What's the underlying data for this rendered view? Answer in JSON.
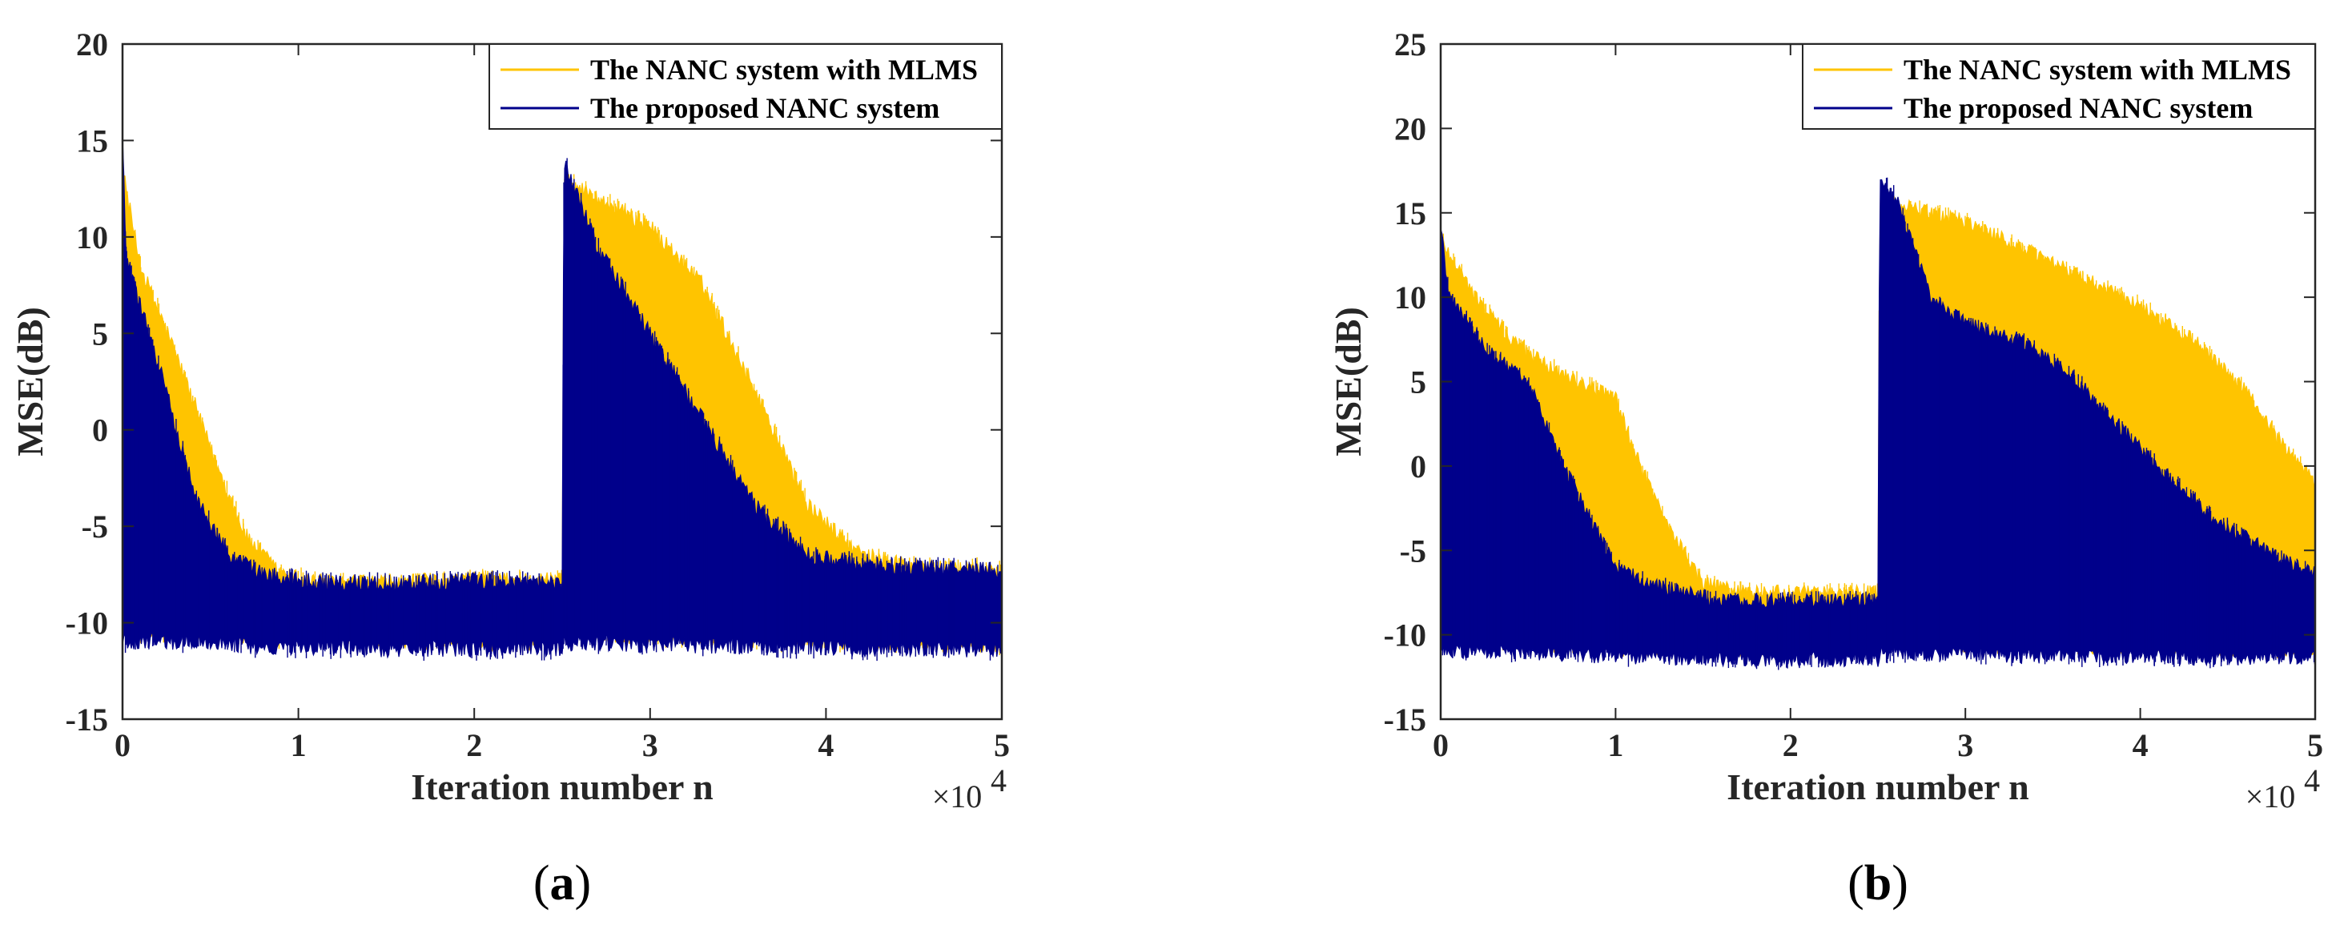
{
  "colors": {
    "mlms": "#FFC400",
    "proposed": "#00008B",
    "axis": "#262626"
  },
  "chart_data": [
    {
      "type": "line",
      "panel_label": "a",
      "xlabel": "Iteration number n",
      "ylabel": "MSE(dB)",
      "x_multiplier_label": "×10",
      "x_multiplier_exp": "4",
      "xlim": [
        0,
        5
      ],
      "ylim": [
        -15,
        20
      ],
      "xticks": [
        0,
        1,
        2,
        3,
        4,
        5
      ],
      "yticks": [
        20,
        15,
        10,
        5,
        0,
        -5,
        -10,
        -15
      ],
      "legend_position": "top-right",
      "series": [
        {
          "name": "The NANC system with MLMS",
          "color_key": "mlms",
          "x": [
            0.0,
            0.1,
            0.3,
            0.5,
            0.7,
            0.9,
            1.2,
            1.6,
            2.0,
            2.45,
            2.5,
            2.51,
            2.7,
            3.0,
            3.3,
            3.6,
            3.9,
            4.2,
            4.6,
            5.0
          ],
          "upper": [
            13.5,
            8.5,
            4.0,
            -1.0,
            -5.5,
            -7.5,
            -8.0,
            -7.9,
            -7.8,
            -7.8,
            -7.8,
            13.0,
            12.0,
            10.5,
            7.5,
            2.0,
            -4.0,
            -6.5,
            -7.2,
            -7.2
          ],
          "lower": [
            -10.0,
            -10.0,
            -10.0,
            -10.0,
            -10.2,
            -10.3,
            -10.3,
            -10.4,
            -10.4,
            -10.4,
            -10.4,
            -9.5,
            -10.0,
            -10.2,
            -10.3,
            -10.4,
            -10.5,
            -10.5,
            -10.6,
            -10.6
          ]
        },
        {
          "name": "The proposed NANC system",
          "color_key": "proposed",
          "x": [
            0.0,
            0.02,
            0.2,
            0.4,
            0.6,
            0.8,
            1.0,
            1.5,
            2.0,
            2.45,
            2.5,
            2.51,
            2.7,
            3.0,
            3.3,
            3.6,
            3.9,
            4.2,
            4.6,
            5.0
          ],
          "upper": [
            15.0,
            9.0,
            3.5,
            -3.0,
            -6.5,
            -7.5,
            -7.8,
            -8.0,
            -7.8,
            -8.0,
            -8.0,
            14.0,
            9.5,
            5.0,
            0.5,
            -4.0,
            -6.5,
            -7.0,
            -7.2,
            -7.2
          ],
          "lower": [
            -10.5,
            -10.5,
            -10.5,
            -10.5,
            -10.6,
            -10.8,
            -10.8,
            -10.9,
            -10.9,
            -10.9,
            -10.9,
            -10.6,
            -10.6,
            -10.7,
            -10.7,
            -10.8,
            -10.8,
            -10.9,
            -10.9,
            -10.9
          ]
        }
      ]
    },
    {
      "type": "line",
      "panel_label": "b",
      "xlabel": "Iteration number n",
      "ylabel": "MSE(dB)",
      "x_multiplier_label": "×10",
      "x_multiplier_exp": "4",
      "xlim": [
        0,
        5
      ],
      "ylim": [
        -15,
        25
      ],
      "xticks": [
        0,
        1,
        2,
        3,
        4,
        5
      ],
      "yticks": [
        25,
        20,
        15,
        10,
        5,
        0,
        -5,
        -10,
        -15
      ],
      "legend_position": "top-right",
      "series": [
        {
          "name": "The NANC system with MLMS",
          "color_key": "mlms",
          "x": [
            0.0,
            0.2,
            0.4,
            0.6,
            0.8,
            1.0,
            1.1,
            1.3,
            1.5,
            1.8,
            2.0,
            2.45,
            2.5,
            2.51,
            2.6,
            2.8,
            3.0,
            3.5,
            4.0,
            4.3,
            4.6,
            4.8,
            5.0
          ],
          "upper": [
            13.5,
            10.0,
            7.5,
            6.0,
            5.0,
            4.0,
            1.0,
            -3.5,
            -7.0,
            -7.5,
            -7.5,
            -7.5,
            -7.5,
            16.0,
            15.5,
            15.0,
            14.5,
            12.0,
            9.5,
            7.5,
            4.5,
            1.5,
            -1.0
          ],
          "lower": [
            -10.0,
            -10.0,
            -10.0,
            -10.0,
            -10.0,
            -10.2,
            -10.2,
            -10.3,
            -10.3,
            -10.4,
            -10.4,
            -10.4,
            -10.4,
            -9.5,
            -9.8,
            -10.0,
            -10.1,
            -10.2,
            -10.3,
            -10.3,
            -10.4,
            -10.4,
            -10.4
          ]
        },
        {
          "name": "The proposed NANC system",
          "color_key": "proposed",
          "x": [
            0.0,
            0.05,
            0.3,
            0.5,
            0.7,
            0.9,
            1.0,
            1.2,
            1.4,
            1.6,
            2.0,
            2.45,
            2.5,
            2.51,
            2.6,
            2.8,
            3.0,
            3.3,
            3.6,
            4.0,
            4.4,
            4.8,
            5.0
          ],
          "upper": [
            14.0,
            10.0,
            6.5,
            5.0,
            0.0,
            -4.0,
            -6.0,
            -7.0,
            -7.5,
            -8.0,
            -8.0,
            -8.0,
            -8.0,
            17.0,
            16.0,
            10.0,
            8.5,
            7.5,
            5.5,
            1.0,
            -3.0,
            -5.5,
            -6.5
          ],
          "lower": [
            -10.5,
            -10.5,
            -10.5,
            -10.6,
            -10.7,
            -10.8,
            -10.8,
            -10.9,
            -10.9,
            -11.0,
            -11.0,
            -11.0,
            -11.0,
            -10.6,
            -10.6,
            -10.7,
            -10.7,
            -10.8,
            -10.8,
            -10.9,
            -10.9,
            -10.9,
            -10.9
          ]
        }
      ]
    }
  ]
}
